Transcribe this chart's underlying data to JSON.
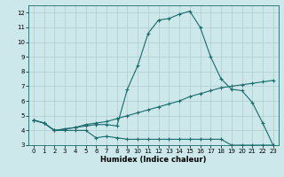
{
  "xlabel": "Humidex (Indice chaleur)",
  "xlim": [
    -0.5,
    23.5
  ],
  "ylim": [
    3,
    12.5
  ],
  "yticks": [
    3,
    4,
    5,
    6,
    7,
    8,
    9,
    10,
    11,
    12
  ],
  "xticks": [
    0,
    1,
    2,
    3,
    4,
    5,
    6,
    7,
    8,
    9,
    10,
    11,
    12,
    13,
    14,
    15,
    16,
    17,
    18,
    19,
    20,
    21,
    22,
    23
  ],
  "bg_color": "#cce8eb",
  "line_color": "#1a6b6b",
  "grid_color": "#b0ccce",
  "line1_x": [
    0,
    1,
    2,
    3,
    4,
    5,
    6,
    7,
    8,
    9,
    10,
    11,
    12,
    13,
    14,
    15,
    16,
    17,
    18,
    19,
    20,
    21,
    22,
    23
  ],
  "line1_y": [
    4.7,
    4.5,
    4.0,
    4.0,
    4.0,
    4.0,
    3.5,
    3.6,
    3.5,
    3.4,
    3.4,
    3.4,
    3.4,
    3.4,
    3.4,
    3.4,
    3.4,
    3.4,
    3.4,
    3.0,
    3.0,
    3.0,
    3.0,
    3.0
  ],
  "line2_x": [
    0,
    1,
    2,
    3,
    4,
    5,
    6,
    7,
    8,
    9,
    10,
    11,
    12,
    13,
    14,
    15,
    16,
    17,
    18,
    19,
    20,
    21,
    22,
    23
  ],
  "line2_y": [
    4.7,
    4.5,
    4.0,
    4.1,
    4.2,
    4.4,
    4.5,
    4.6,
    4.8,
    5.0,
    5.2,
    5.4,
    5.6,
    5.8,
    6.0,
    6.3,
    6.5,
    6.7,
    6.9,
    7.0,
    7.1,
    7.2,
    7.3,
    7.4
  ],
  "line3_x": [
    0,
    1,
    2,
    3,
    4,
    5,
    6,
    7,
    8,
    9,
    10,
    11,
    12,
    13,
    14,
    15,
    16,
    17,
    18,
    19,
    20,
    21,
    22,
    23
  ],
  "line3_y": [
    4.7,
    4.5,
    4.0,
    4.1,
    4.2,
    4.3,
    4.4,
    4.4,
    4.3,
    6.8,
    8.4,
    10.6,
    11.5,
    11.6,
    11.9,
    12.1,
    11.0,
    9.0,
    7.5,
    6.8,
    6.7,
    5.9,
    4.5,
    3.0
  ]
}
